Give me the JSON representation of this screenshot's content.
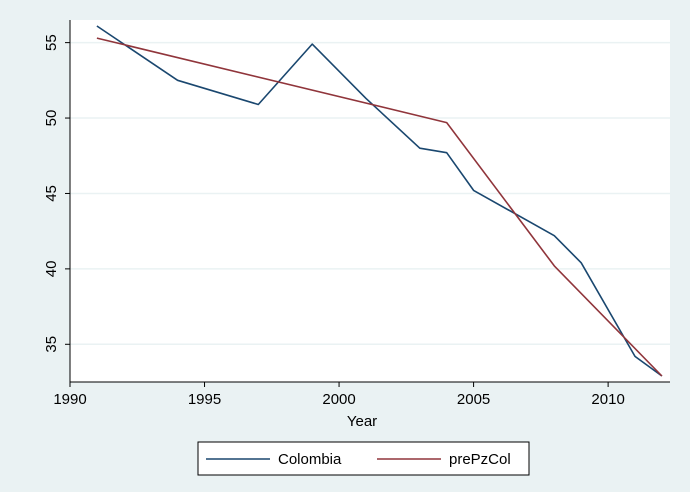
{
  "chart_data": {
    "type": "line",
    "title": "",
    "xlabel": "Year",
    "ylabel": "",
    "xlim": [
      1990,
      2012.3
    ],
    "ylim": [
      32.5,
      56.5
    ],
    "x_ticks": [
      1990,
      1995,
      2000,
      2005,
      2010
    ],
    "y_ticks": [
      35,
      40,
      45,
      50,
      55
    ],
    "grid": "horizontal",
    "legend_position": "bottom",
    "series": [
      {
        "name": "Colombia",
        "color": "#1a476f",
        "x": [
          1991,
          1994,
          1997,
          1999,
          2001,
          2003,
          2004,
          2005,
          2008,
          2009,
          2011,
          2012
        ],
        "y": [
          56.1,
          52.5,
          50.9,
          54.9,
          51.3,
          48.0,
          47.7,
          45.2,
          42.2,
          40.4,
          34.2,
          32.9
        ]
      },
      {
        "name": "prePzCol",
        "color": "#90353b",
        "x": [
          1991,
          2004,
          2008,
          2012
        ],
        "y": [
          55.3,
          49.7,
          40.2,
          32.9
        ]
      }
    ]
  }
}
